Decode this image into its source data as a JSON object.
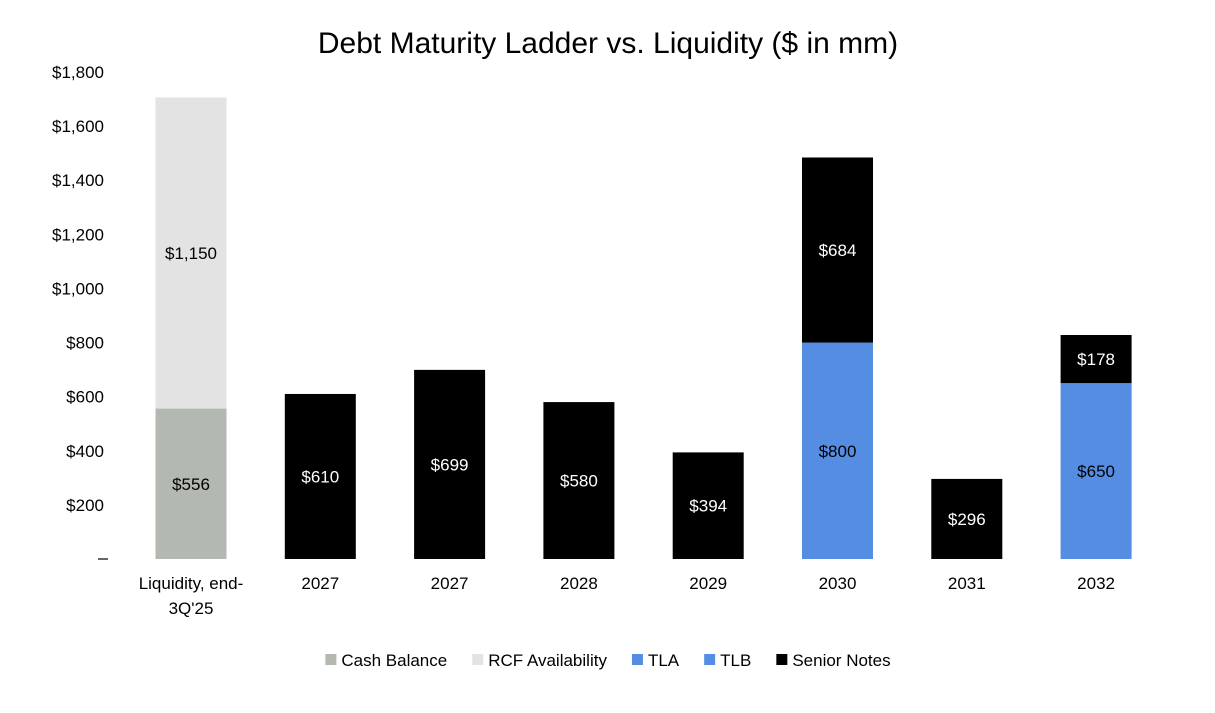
{
  "chart_data": {
    "type": "bar",
    "stacked": true,
    "title": "Debt Maturity Ladder vs. Liquidity ($ in mm)",
    "xlabel": "",
    "ylabel": "",
    "ylim": [
      0,
      1800
    ],
    "y_ticks": [
      {
        "value": 0,
        "label": "–"
      },
      {
        "value": 200,
        "label": "$200"
      },
      {
        "value": 400,
        "label": "$400"
      },
      {
        "value": 600,
        "label": "$600"
      },
      {
        "value": 800,
        "label": "$800"
      },
      {
        "value": 1000,
        "label": "$1,000"
      },
      {
        "value": 1200,
        "label": "$1,200"
      },
      {
        "value": 1400,
        "label": "$1,400"
      },
      {
        "value": 1600,
        "label": "$1,600"
      },
      {
        "value": 1800,
        "label": "$1,800"
      }
    ],
    "categories": [
      [
        "Liquidity, end-",
        "3Q'25"
      ],
      [
        "2027"
      ],
      [
        "2027"
      ],
      [
        "2028"
      ],
      [
        "2029"
      ],
      [
        "2030"
      ],
      [
        "2031"
      ],
      [
        "2032"
      ]
    ],
    "series": [
      {
        "name": "Cash Balance",
        "color": "#b3b8b1",
        "label_color": "#000000",
        "values": [
          556,
          0,
          0,
          0,
          0,
          0,
          0,
          0
        ],
        "labels": [
          "$556",
          "",
          "",
          "",
          "",
          "",
          "",
          ""
        ]
      },
      {
        "name": "RCF Availability",
        "color": "#e3e3e3",
        "label_color": "#000000",
        "values": [
          1150,
          0,
          0,
          0,
          0,
          0,
          0,
          0
        ],
        "labels": [
          "$1,150",
          "",
          "",
          "",
          "",
          "",
          "",
          ""
        ]
      },
      {
        "name": "TLA",
        "color": "#558de3",
        "label_color": "#000000",
        "values": [
          0,
          0,
          0,
          0,
          0,
          800,
          0,
          0
        ],
        "labels": [
          "",
          "",
          "",
          "",
          "",
          "$800",
          "",
          ""
        ]
      },
      {
        "name": "TLB",
        "color": "#558de3",
        "label_color": "#000000",
        "values": [
          0,
          0,
          0,
          0,
          0,
          0,
          0,
          650
        ],
        "labels": [
          "",
          "",
          "",
          "",
          "",
          "",
          "",
          "$650"
        ]
      },
      {
        "name": "Senior Notes",
        "color": "#000000",
        "label_color": "#ffffff",
        "values": [
          0,
          610,
          699,
          580,
          394,
          684,
          296,
          178
        ],
        "labels": [
          "",
          "$610",
          "$699",
          "$580",
          "$394",
          "$684",
          "$296",
          "$178"
        ]
      }
    ],
    "legend_position": "bottom-center",
    "grid": false
  }
}
